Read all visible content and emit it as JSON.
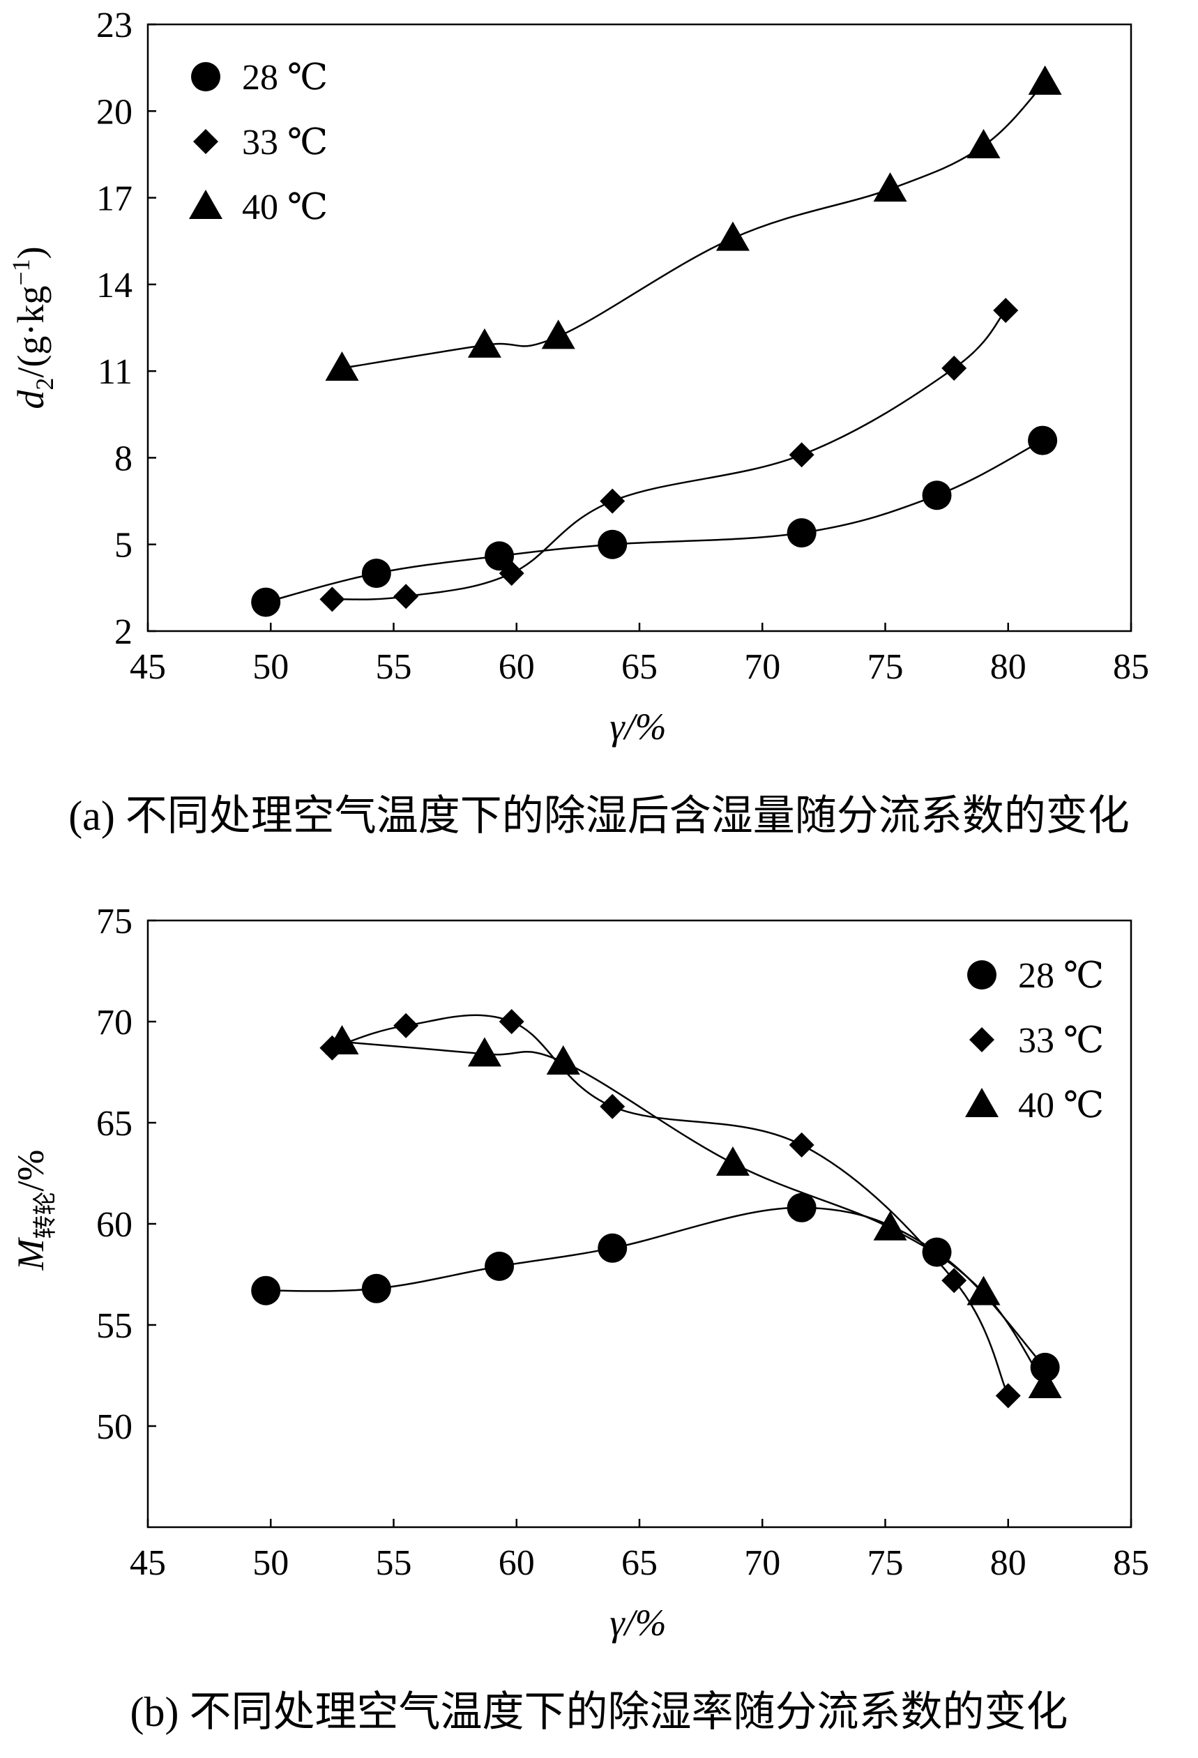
{
  "chart_data": [
    {
      "type": "line",
      "title": "",
      "xlabel": "γ/%",
      "ylabel": "d2/(g·kg⁻¹)",
      "xlim": [
        45,
        85
      ],
      "ylim": [
        2,
        23
      ],
      "xticks": [
        45,
        50,
        55,
        60,
        65,
        70,
        75,
        80,
        85
      ],
      "yticks": [
        2,
        5,
        8,
        11,
        14,
        17,
        20,
        23
      ],
      "legend_position": "top-left",
      "caption": "(a) 不同处理空气温度下的除湿后含湿量随分流系数的变化",
      "series": [
        {
          "name": "28 ℃",
          "marker": "circle",
          "x": [
            49.8,
            54.3,
            59.3,
            63.9,
            71.6,
            77.1,
            81.4
          ],
          "y": [
            3.0,
            4.0,
            4.6,
            5.0,
            5.4,
            6.7,
            8.6
          ]
        },
        {
          "name": "33 ℃",
          "marker": "diamond",
          "x": [
            52.5,
            55.5,
            59.8,
            63.9,
            71.6,
            77.8,
            79.9
          ],
          "y": [
            3.1,
            3.2,
            4.0,
            6.5,
            8.1,
            11.1,
            13.1
          ]
        },
        {
          "name": "40 ℃",
          "marker": "triangle",
          "x": [
            52.9,
            58.7,
            61.7,
            68.8,
            75.2,
            79.0,
            81.5
          ],
          "y": [
            11.1,
            11.9,
            12.2,
            15.6,
            17.3,
            18.8,
            21.0
          ]
        }
      ]
    },
    {
      "type": "line",
      "title": "",
      "xlabel": "γ/%",
      "ylabel": "M转轮/%",
      "xlim": [
        45,
        85
      ],
      "ylim": [
        45,
        75
      ],
      "xticks": [
        45,
        50,
        55,
        60,
        65,
        70,
        75,
        80,
        85
      ],
      "yticks": [
        50,
        55,
        60,
        65,
        70,
        75
      ],
      "legend_position": "top-right",
      "caption": "(b) 不同处理空气温度下的除湿率随分流系数的变化",
      "series": [
        {
          "name": "28 ℃",
          "marker": "circle",
          "x": [
            49.8,
            54.3,
            59.3,
            63.9,
            71.6,
            77.1,
            81.5
          ],
          "y": [
            56.7,
            56.8,
            57.9,
            58.8,
            60.8,
            58.6,
            52.9
          ]
        },
        {
          "name": "33 ℃",
          "marker": "diamond",
          "x": [
            52.5,
            55.5,
            59.8,
            63.9,
            71.6,
            77.8,
            80.0
          ],
          "y": [
            68.7,
            69.8,
            70.0,
            65.8,
            63.9,
            57.2,
            51.5
          ]
        },
        {
          "name": "40 ℃",
          "marker": "triangle",
          "x": [
            52.9,
            58.7,
            61.9,
            68.8,
            75.2,
            79.0,
            81.5
          ],
          "y": [
            69.0,
            68.4,
            68.0,
            63.0,
            59.8,
            56.6,
            52.0
          ]
        }
      ]
    }
  ]
}
